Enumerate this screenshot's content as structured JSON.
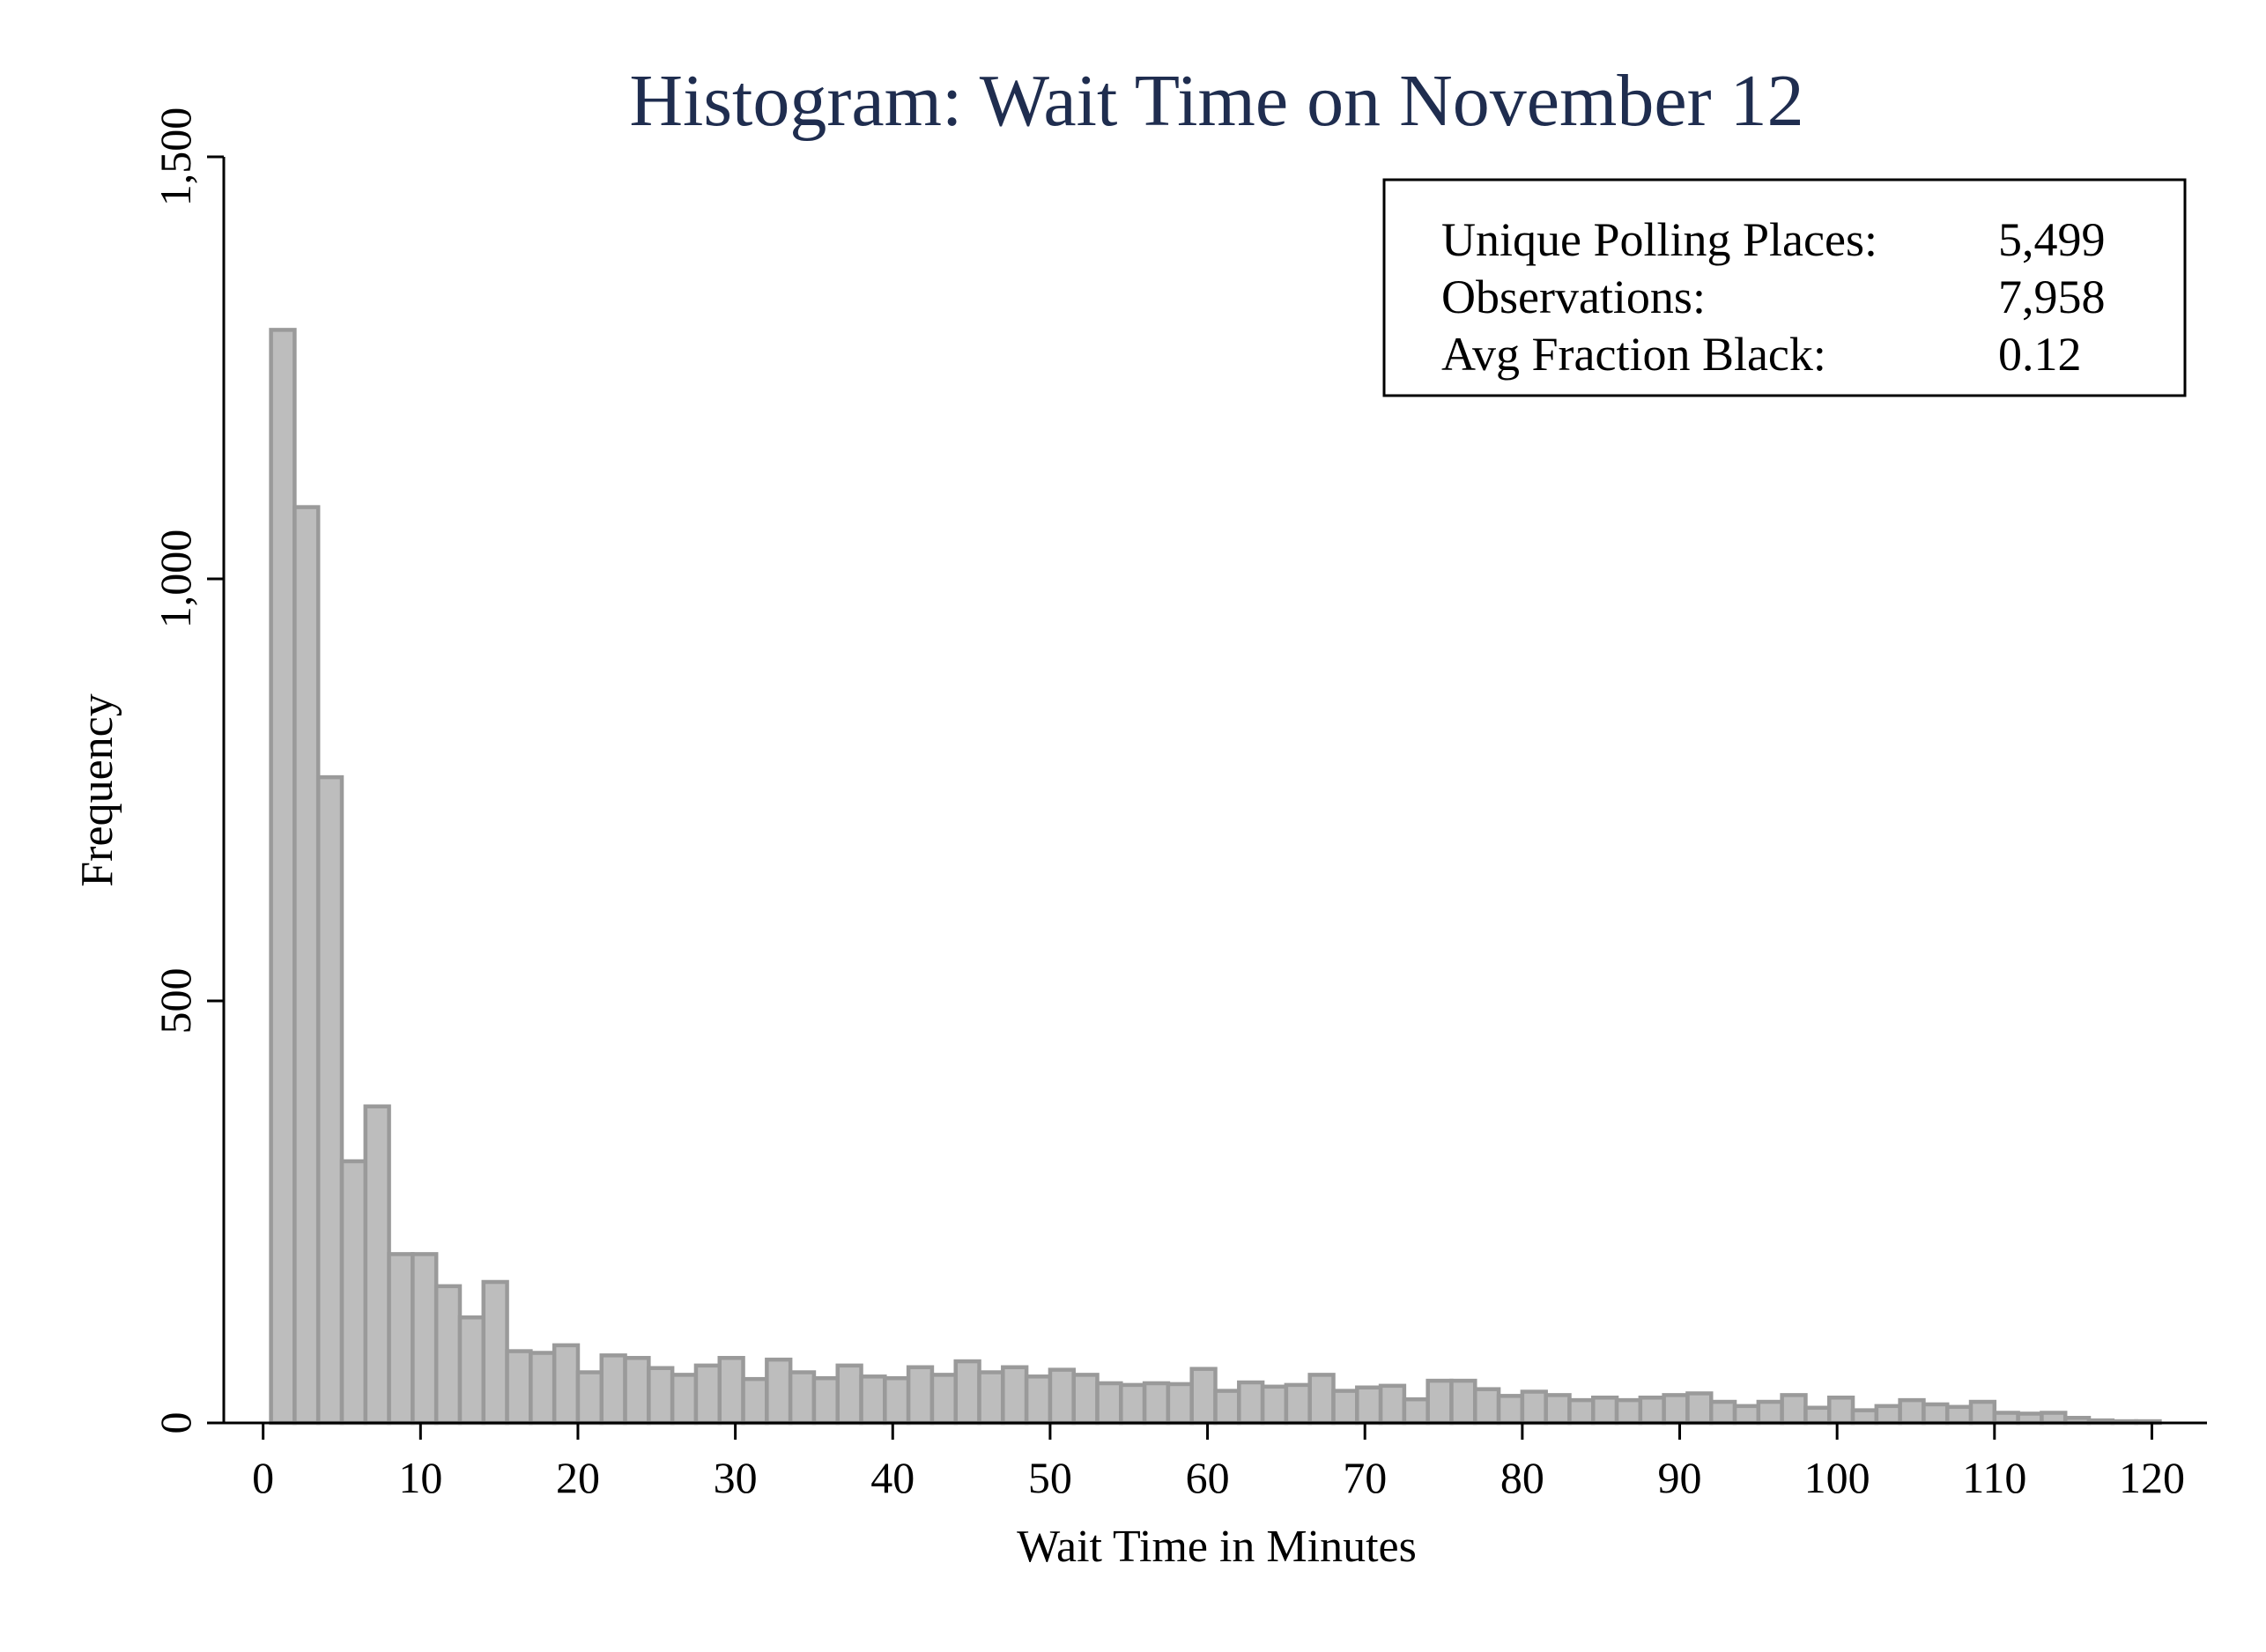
{
  "chart_data": {
    "type": "bar",
    "title": "Histogram: Wait Time on November 12",
    "xlabel": "Wait Time in Minutes",
    "ylabel": "Frequency",
    "xlim": [
      -2.5,
      123.5
    ],
    "ylim": [
      0,
      1500
    ],
    "xticks": [
      0,
      10,
      20,
      30,
      40,
      50,
      60,
      70,
      80,
      90,
      100,
      110,
      120
    ],
    "xtick_labels": [
      "0",
      "10",
      "20",
      "30",
      "40",
      "50",
      "60",
      "70",
      "80",
      "90",
      "100",
      "110",
      "120"
    ],
    "yticks": [
      0,
      500,
      1000,
      1500
    ],
    "ytick_labels": [
      "0",
      "500",
      "1,000",
      "1,500"
    ],
    "grid": false,
    "bin_start": 0.5,
    "bin_width": 1.5,
    "values": [
      1295,
      1085,
      765,
      310,
      375,
      200,
      200,
      162,
      125,
      167,
      85,
      83,
      92,
      60,
      80,
      77,
      65,
      57,
      68,
      77,
      52,
      75,
      60,
      53,
      68,
      55,
      53,
      66,
      57,
      73,
      60,
      66,
      55,
      63,
      57,
      47,
      45,
      47,
      46,
      64,
      38,
      48,
      43,
      45,
      57,
      38,
      42,
      44,
      28,
      50,
      50,
      40,
      32,
      37,
      33,
      27,
      30,
      27,
      30,
      33,
      35,
      25,
      20,
      25,
      33,
      18,
      30,
      15,
      20,
      27,
      22,
      19,
      25,
      12,
      11,
      12,
      6,
      3,
      2,
      2
    ],
    "stats_box": {
      "rows": [
        {
          "label": "Unique Polling Places:",
          "value": "5,499"
        },
        {
          "label": "Observations:",
          "value": "7,958"
        },
        {
          "label": "Avg Fraction Black:",
          "value": "0.12"
        }
      ],
      "placement": "top-right"
    }
  }
}
